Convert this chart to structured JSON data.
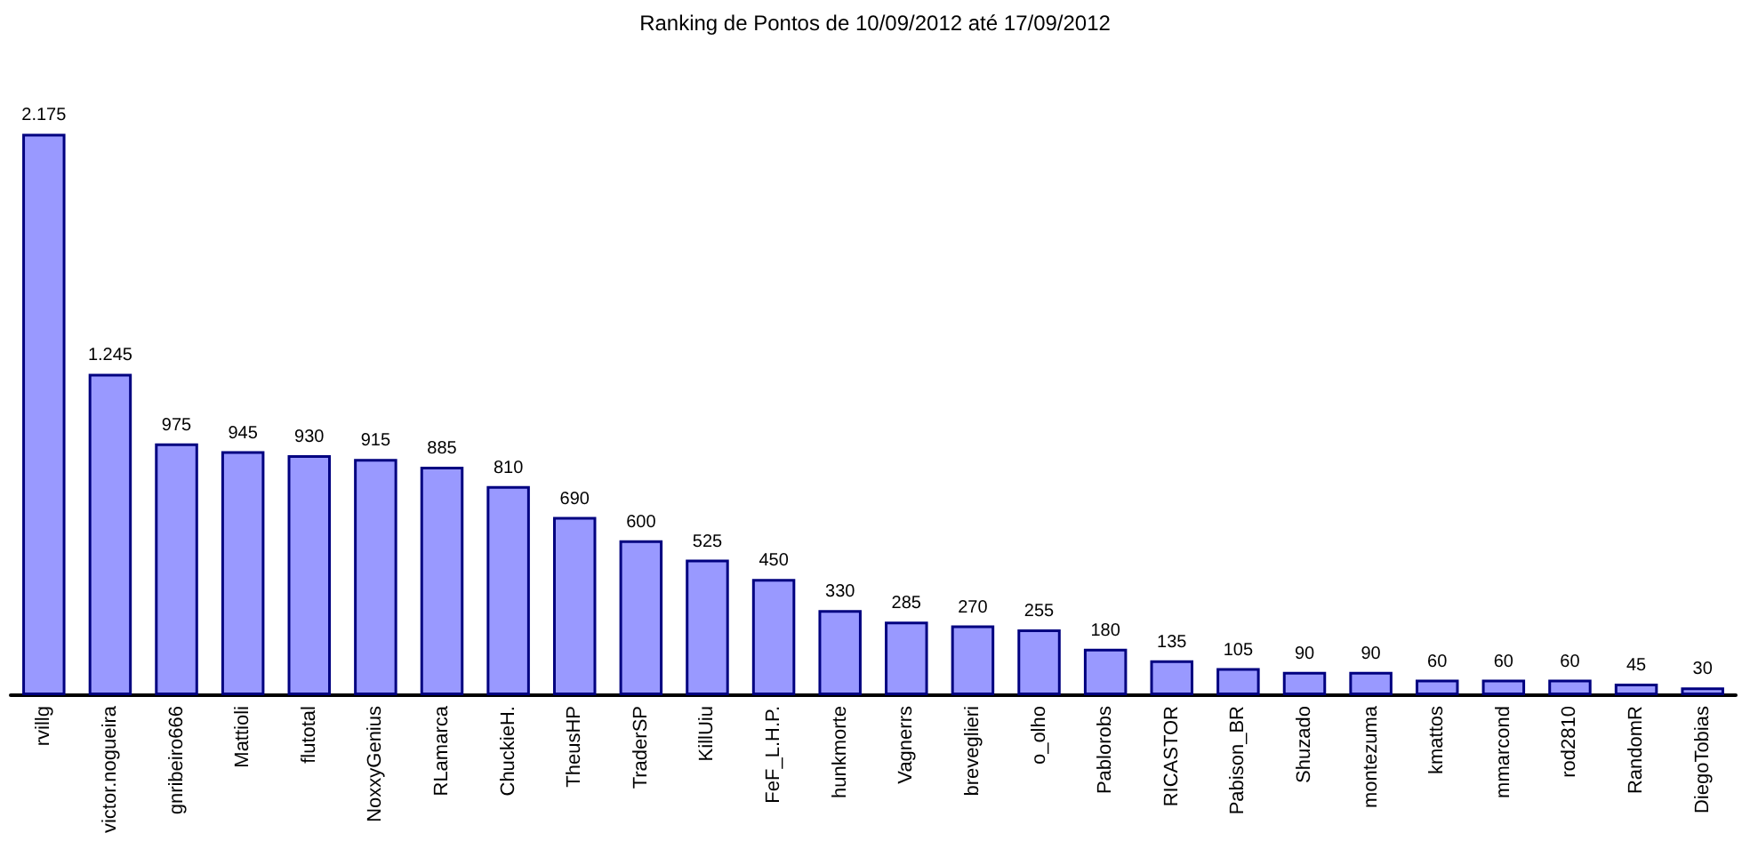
{
  "chart_data": {
    "type": "bar",
    "title": "Ranking de Pontos de 10/09/2012 até 17/09/2012",
    "categories": [
      "rvillg",
      "victor.nogueira",
      "gnribeiro666",
      "Mattioli",
      "flutotal",
      "NoxxyGenius",
      "RLamarca",
      "ChuckieH.",
      "TheusHP",
      "TraderSP",
      "KillUiu",
      "FeF_L.H.P.",
      "hunkmorte",
      "Vagnerrs",
      "breveglieri",
      "o_olho",
      "Pablorobs",
      "RICASTOR",
      "Pabison_BR",
      "Shuzado",
      "montezuma",
      "kmattos",
      "mmarcond",
      "rod2810",
      "RandomR",
      "DiegoTobias"
    ],
    "values": [
      2175,
      1245,
      975,
      945,
      930,
      915,
      885,
      810,
      690,
      600,
      525,
      450,
      330,
      285,
      270,
      255,
      180,
      135,
      105,
      90,
      90,
      60,
      60,
      60,
      45,
      30
    ],
    "value_labels": [
      "2.175",
      "1.245",
      "975",
      "945",
      "930",
      "915",
      "885",
      "810",
      "690",
      "600",
      "525",
      "450",
      "330",
      "285",
      "270",
      "255",
      "180",
      "135",
      "105",
      "90",
      "90",
      "60",
      "60",
      "60",
      "45",
      "30"
    ],
    "color": "#9999ff"
  }
}
